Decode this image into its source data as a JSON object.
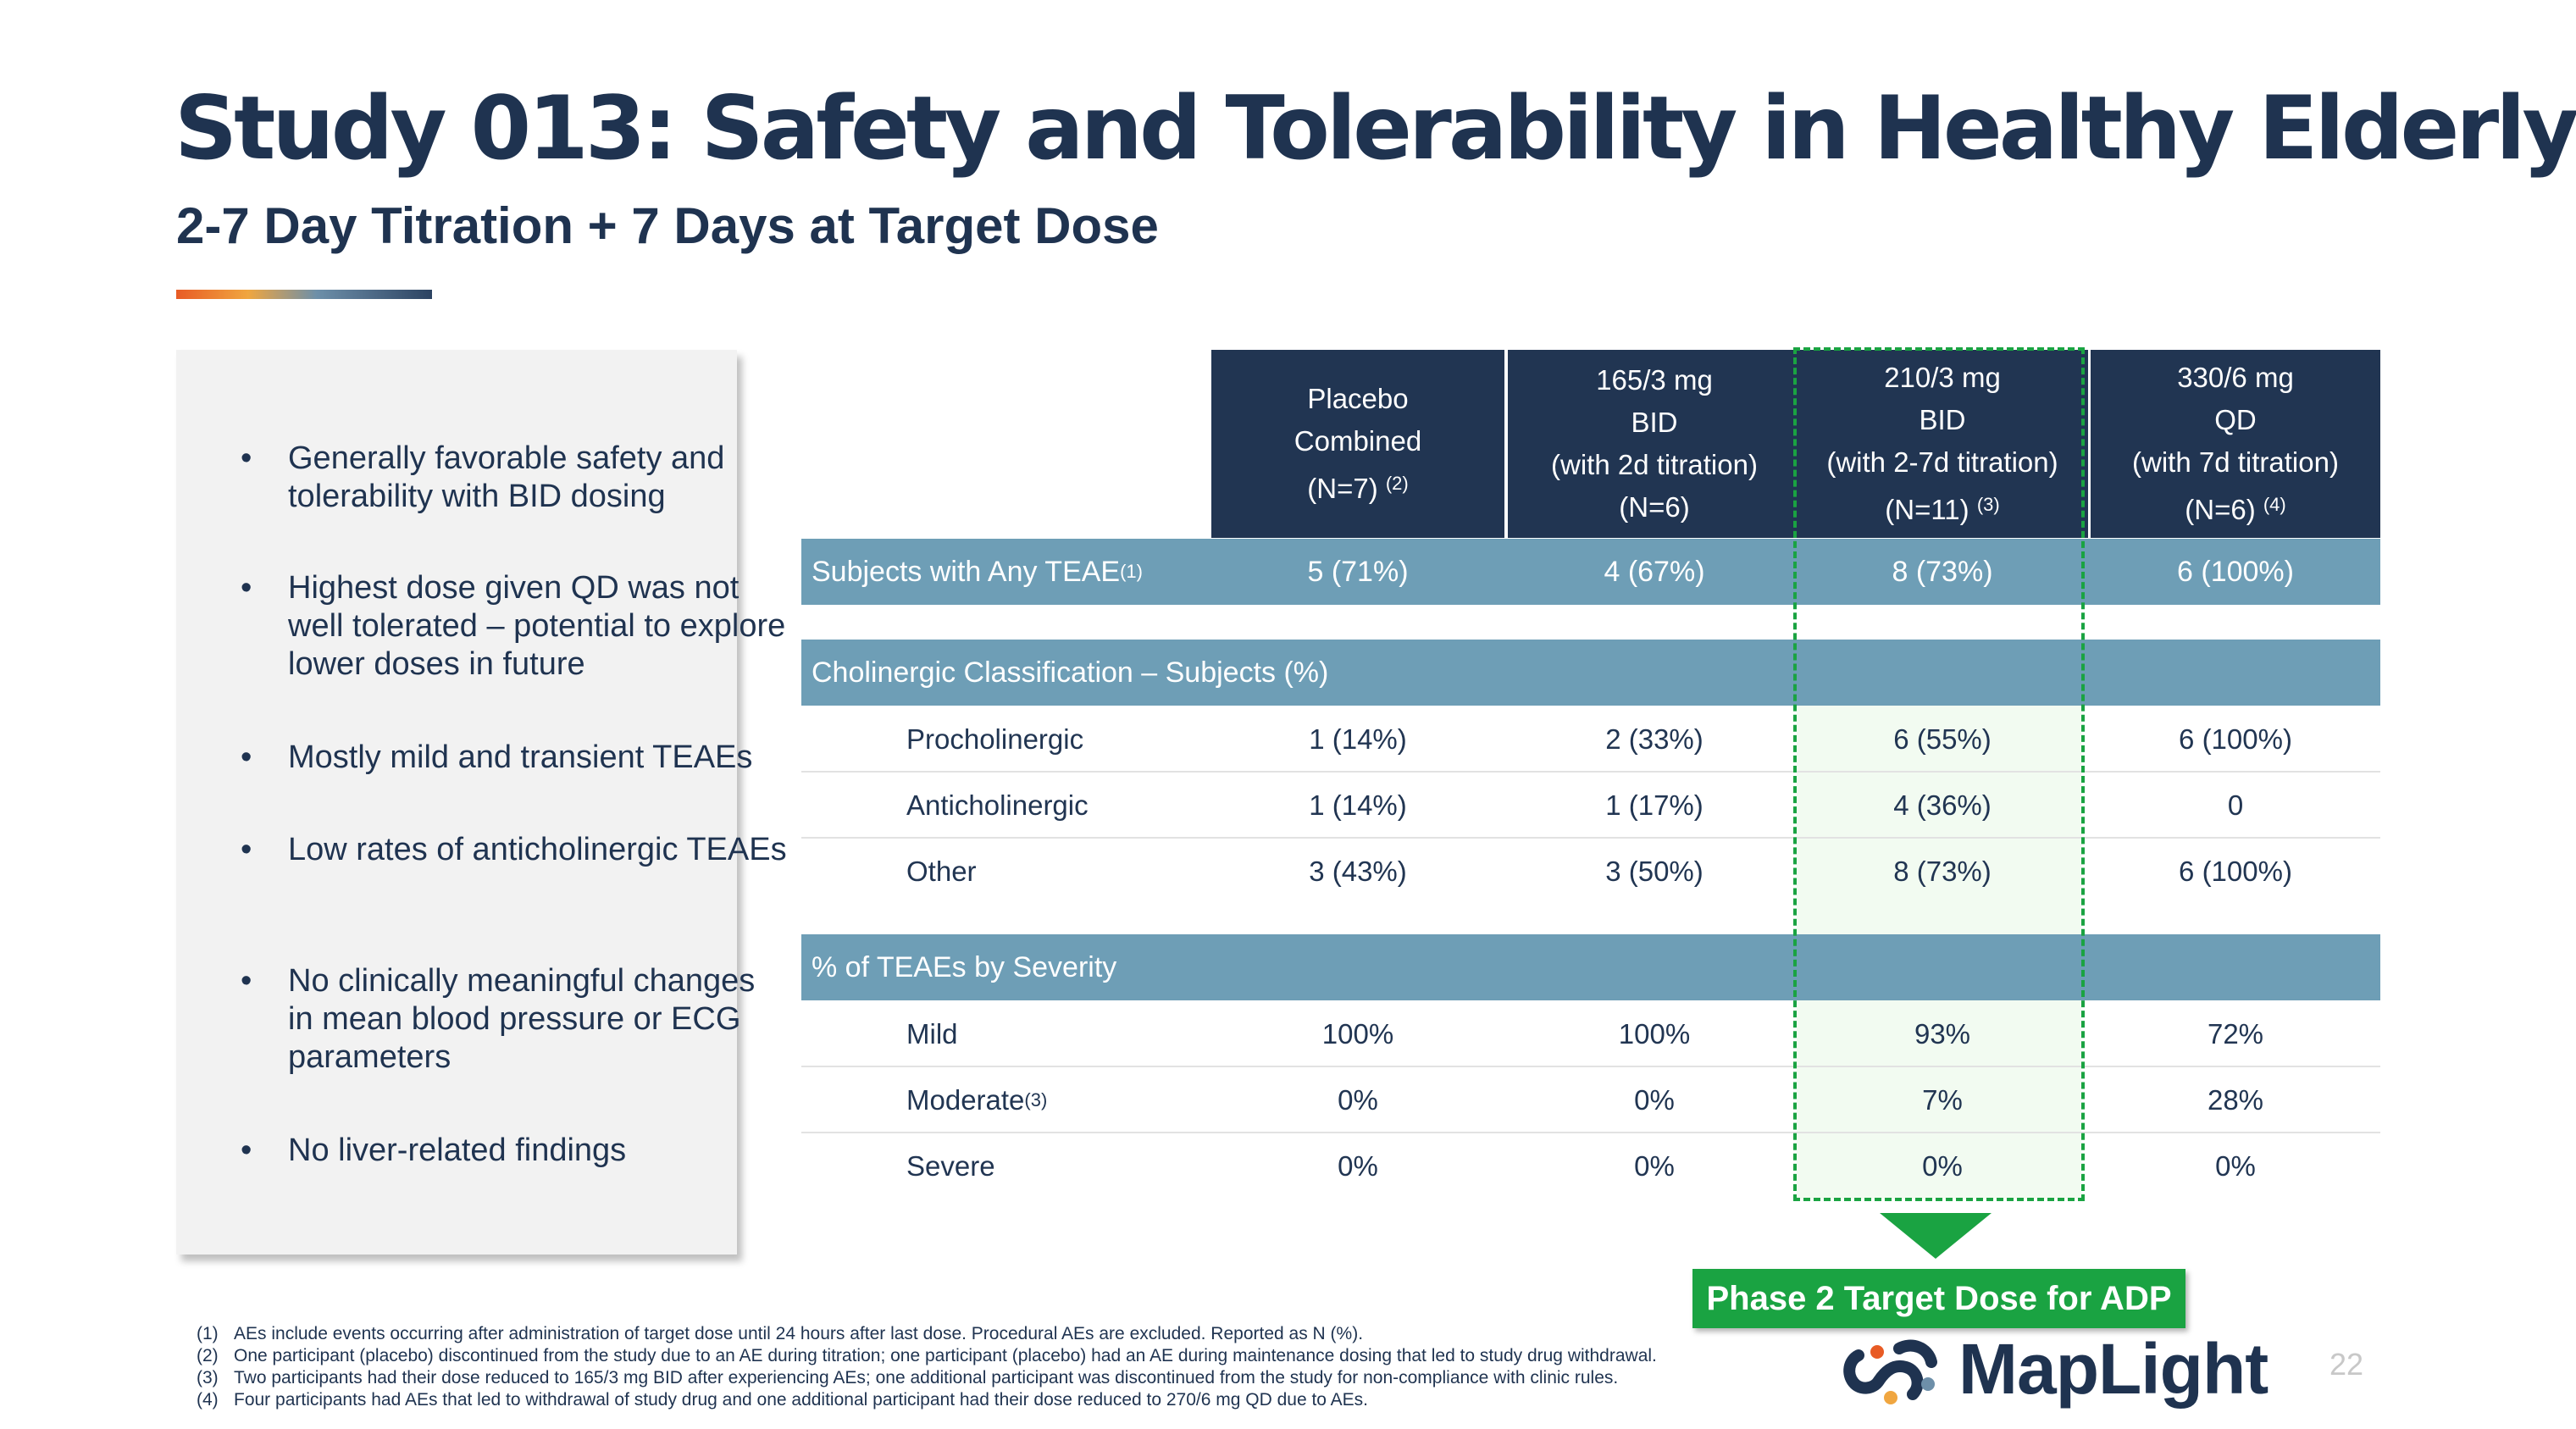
{
  "title": "Study 013: Safety and Tolerability in Healthy Elderly",
  "subtitle": "2-7 Day Titration + 7 Days at Target Dose",
  "bullets": [
    "Generally favorable safety and tolerability with BID dosing",
    "Highest dose given QD was not well tolerated – potential to explore lower doses in future",
    "Mostly mild and transient TEAEs",
    "Low rates of anticholinergic TEAEs",
    "No clinically meaningful changes in mean blood pressure or ECG parameters",
    "No liver-related findings"
  ],
  "table": {
    "columns": [
      {
        "lines": [
          "Placebo",
          "Combined",
          "(N=7)"
        ],
        "footnote": "(2)"
      },
      {
        "lines": [
          "165/3 mg",
          "BID",
          "(with 2d titration)",
          "(N=6)"
        ],
        "footnote": ""
      },
      {
        "lines": [
          "210/3 mg",
          "BID",
          "(with 2-7d titration)",
          "(N=11)"
        ],
        "footnote": "(3)"
      },
      {
        "lines": [
          "330/6 mg",
          "QD",
          "(with 7d titration)",
          "(N=6)"
        ],
        "footnote": "(4)"
      }
    ],
    "any_teae": {
      "label": "Subjects with Any TEAE",
      "footnote": "(1)",
      "values": [
        "5 (71%)",
        "4 (67%)",
        "8 (73%)",
        "6 (100%)"
      ]
    },
    "cholinergic": {
      "label": "Cholinergic Classification – Subjects (%)",
      "rows": [
        {
          "label": "Procholinergic",
          "values": [
            "1 (14%)",
            "2 (33%)",
            "6 (55%)",
            "6 (100%)"
          ]
        },
        {
          "label": "Anticholinergic",
          "values": [
            "1 (14%)",
            "1 (17%)",
            "4 (36%)",
            "0"
          ]
        },
        {
          "label": "Other",
          "values": [
            "3 (43%)",
            "3 (50%)",
            "8 (73%)",
            "6 (100%)"
          ]
        }
      ]
    },
    "severity": {
      "label": "% of TEAEs by Severity",
      "rows": [
        {
          "label": "Mild",
          "footnote": "",
          "values": [
            "100%",
            "100%",
            "93%",
            "72%"
          ]
        },
        {
          "label": "Moderate",
          "footnote": "(3)",
          "values": [
            "0%",
            "0%",
            "7%",
            "28%"
          ]
        },
        {
          "label": "Severe",
          "footnote": "",
          "values": [
            "0%",
            "0%",
            "0%",
            "0%"
          ]
        }
      ]
    }
  },
  "target_label": "Phase 2 Target Dose for ADP",
  "footnotes": [
    {
      "num": "(1)",
      "text": "AEs include events occurring after administration of target dose until 24 hours after last dose. Procedural AEs are excluded. Reported as N (%)."
    },
    {
      "num": "(2)",
      "text": "One participant (placebo) discontinued from the study due to an AE during titration;  one participant  (placebo) had an AE during maintenance dosing that led to study drug withdrawal."
    },
    {
      "num": "(3)",
      "text": "Two participants had their dose reduced to 165/3 mg BID after experiencing AEs; one additional participant was discontinued from the study for non-compliance with clinic rules."
    },
    {
      "num": "(4)",
      "text": "Four participants had AEs that led to withdrawal of study drug and one additional participant had their dose reduced to 270/6 mg QD due to AEs."
    }
  ],
  "logo_text": "MapLight",
  "page_number": "22",
  "colors": {
    "navy": "#213552",
    "band": "#6e9eb6",
    "green": "#1aa342",
    "panel": "#f2f2f2"
  }
}
